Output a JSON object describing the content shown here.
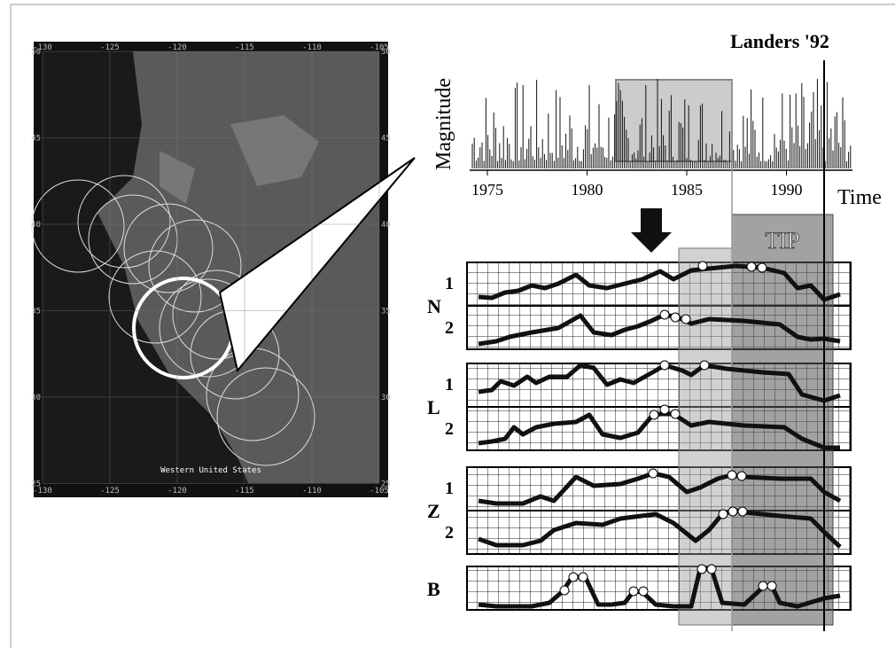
{
  "map": {
    "caption": "Western United States",
    "x_ticks": [
      -130,
      -125,
      -120,
      -115,
      -110,
      -105
    ],
    "y_ticks": [
      50,
      45,
      40,
      35,
      30,
      25
    ]
  },
  "timeline": {
    "title": "Landers '92",
    "y_label": "Magnitude",
    "x_label": "Time",
    "year_ticks": [
      1975,
      1980,
      1985,
      1990
    ]
  },
  "tip_label": "TIP",
  "groups": [
    {
      "label": "N",
      "rows": [
        "1",
        "2"
      ]
    },
    {
      "label": "L",
      "rows": [
        "1",
        "2"
      ]
    },
    {
      "label": "Z",
      "rows": [
        "1",
        "2"
      ]
    },
    {
      "label": "B",
      "rows": []
    }
  ]
}
